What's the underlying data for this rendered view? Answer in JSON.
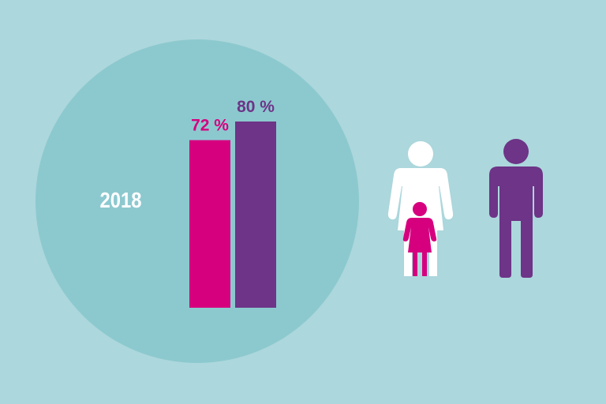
{
  "year": "2018",
  "colors": {
    "background": "#acd7dc",
    "circle": "#8cc9cf",
    "female": "#d6007f",
    "male": "#6d3487",
    "adult_female_icon": "#ffffff"
  },
  "icons": [
    "woman-icon",
    "girl-icon",
    "man-icon"
  ],
  "chart_data": {
    "type": "bar",
    "categories": [
      "",
      ""
    ],
    "values": [
      72,
      80
    ],
    "labels": [
      "72 %",
      "80 %"
    ],
    "colors": [
      "#d6007f",
      "#6d3487"
    ],
    "ylim": [
      0,
      100
    ],
    "title": "",
    "xlabel": "",
    "ylabel": ""
  }
}
